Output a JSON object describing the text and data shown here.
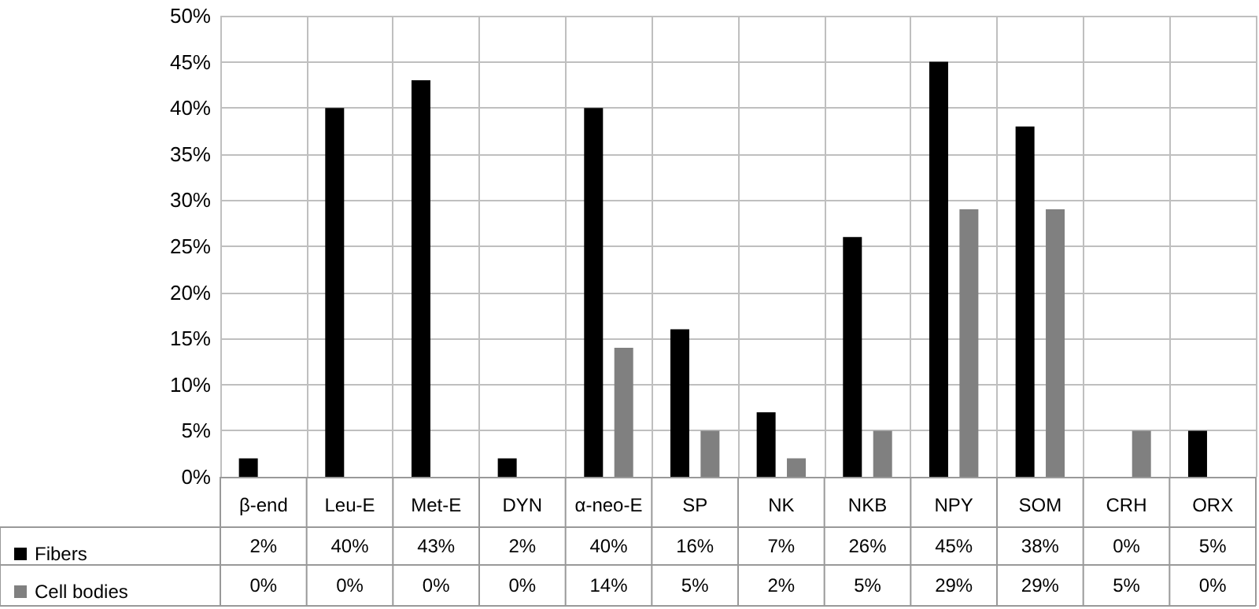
{
  "chart_data": {
    "type": "bar",
    "categories": [
      "β-end",
      "Leu-E",
      "Met-E",
      "DYN",
      "α-neo-E",
      "SP",
      "NK",
      "NKB",
      "NPY",
      "SOM",
      "CRH",
      "ORX"
    ],
    "series": [
      {
        "name": "Fibers",
        "color": "#000000",
        "values": [
          2,
          40,
          43,
          2,
          40,
          16,
          7,
          26,
          45,
          38,
          0,
          5
        ],
        "value_labels": [
          "2%",
          "40%",
          "43%",
          "2%",
          "40%",
          "16%",
          "7%",
          "26%",
          "45%",
          "38%",
          "0%",
          "5%"
        ]
      },
      {
        "name": "Cell bodies",
        "color": "#808080",
        "values": [
          0,
          0,
          0,
          0,
          14,
          5,
          2,
          5,
          29,
          29,
          5,
          0
        ],
        "value_labels": [
          "0%",
          "0%",
          "0%",
          "0%",
          "14%",
          "5%",
          "2%",
          "5%",
          "29%",
          "29%",
          "5%",
          "0%"
        ]
      }
    ],
    "ylim": [
      0,
      50
    ],
    "yticks": [
      {
        "value": 0,
        "label": "0%"
      },
      {
        "value": 5,
        "label": "5%"
      },
      {
        "value": 10,
        "label": "10%"
      },
      {
        "value": 15,
        "label": "15%"
      },
      {
        "value": 20,
        "label": "20%"
      },
      {
        "value": 25,
        "label": "25%"
      },
      {
        "value": 30,
        "label": "30%"
      },
      {
        "value": 35,
        "label": "35%"
      },
      {
        "value": 40,
        "label": "40%"
      },
      {
        "value": 45,
        "label": "45%"
      },
      {
        "value": 50,
        "label": "50%"
      }
    ],
    "grid": true,
    "legend": "bottom left",
    "data_labels": true
  }
}
